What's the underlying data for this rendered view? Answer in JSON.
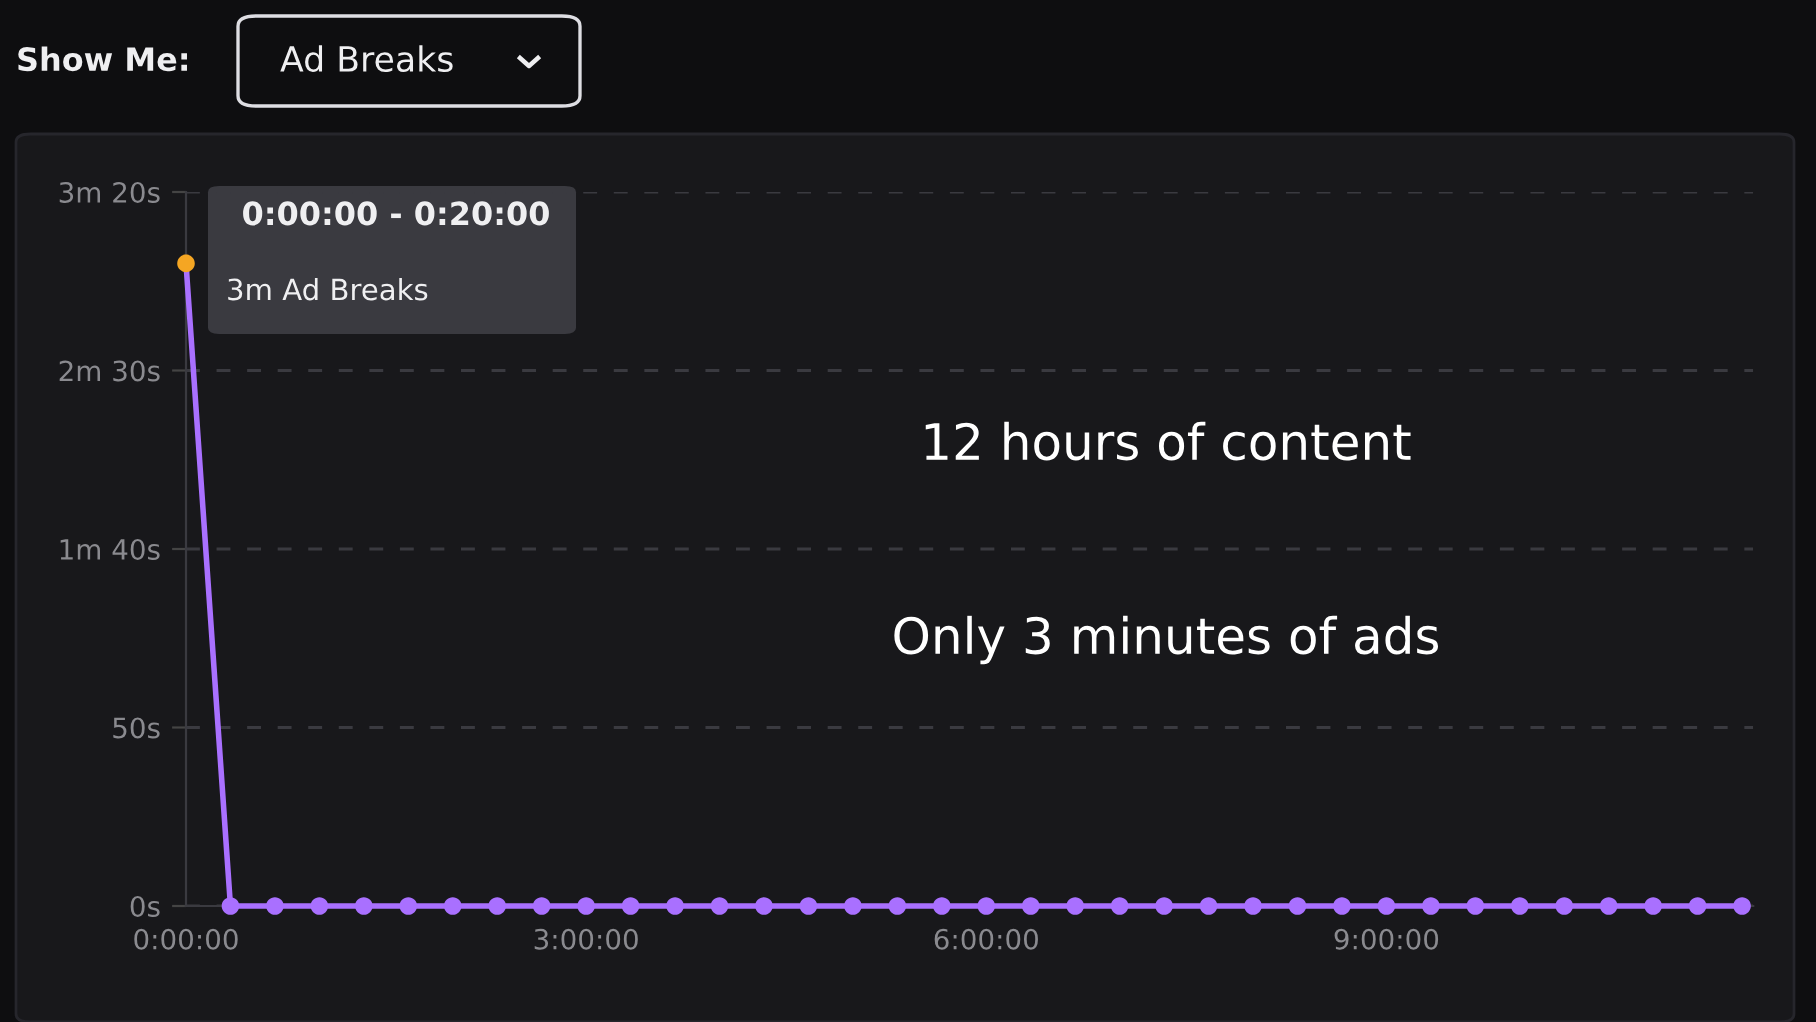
{
  "chart_data": {
    "type": "line",
    "x": [
      0,
      0.3333,
      0.6667,
      1,
      1.3333,
      1.6667,
      2,
      2.3333,
      2.6667,
      3,
      3.3333,
      3.6667,
      4,
      4.3333,
      4.6667,
      5,
      5.3333,
      5.6667,
      6,
      6.3333,
      6.6667,
      7,
      7.3333,
      7.6667,
      8,
      8.3333,
      8.6667,
      9,
      9.3333,
      9.6667,
      10,
      10.3333,
      10.6667,
      11,
      11.3333,
      11.6667
    ],
    "series": [
      {
        "color": "#a970ff",
        "colors": [
          "#f5a623",
          "#a970ff",
          "#a970ff",
          "#a970ff",
          "#a970ff",
          "#a970ff",
          "#a970ff",
          "#a970ff",
          "#a970ff",
          "#a970ff",
          "#a970ff",
          "#a970ff",
          "#a970ff",
          "#a970ff",
          "#a970ff",
          "#a970ff",
          "#a970ff",
          "#a970ff",
          "#a970ff",
          "#a970ff",
          "#a970ff",
          "#a970ff",
          "#a970ff",
          "#a970ff",
          "#a970ff",
          "#a970ff",
          "#a970ff",
          "#a970ff",
          "#a970ff",
          "#a970ff",
          "#a970ff",
          "#a970ff",
          "#a970ff",
          "#a970ff",
          "#a970ff",
          "#a970ff"
        ],
        "values": [
          180,
          0,
          0,
          0,
          0,
          0,
          0,
          0,
          0,
          0,
          0,
          0,
          0,
          0,
          0,
          0,
          0,
          0,
          0,
          0,
          0,
          0,
          0,
          0,
          0,
          0,
          0,
          0,
          0,
          0,
          0,
          0,
          0,
          0,
          0,
          0
        ]
      }
    ],
    "xlim": [
      0,
      11.75
    ],
    "xticks": [
      {
        "value": 0,
        "label": "0:00:00"
      },
      {
        "value": 3,
        "label": "3:00:00"
      },
      {
        "value": 6,
        "label": "6:00:00"
      },
      {
        "value": 9,
        "label": "9:00:00"
      }
    ],
    "ylim": [
      0,
      200
    ],
    "yticks": [
      {
        "value": 0,
        "label": "0s"
      },
      {
        "value": 50,
        "label": "50s"
      },
      {
        "value": 100,
        "label": "1m 40s"
      },
      {
        "value": 150,
        "label": "2m 30s"
      },
      {
        "value": 200,
        "label": "3m 20s"
      }
    ],
    "grid": "y",
    "marker": "circle",
    "line_style": "solid",
    "legend": false,
    "annotations": [
      "Show Me:",
      "Ad Breaks",
      {
        "text": "0:00:00 - 0:20:00",
        "x": 0,
        "y": 180
      },
      "3m Ad Breaks",
      "12 hours of content",
      "Only 3 minutes of ads"
    ]
  }
}
